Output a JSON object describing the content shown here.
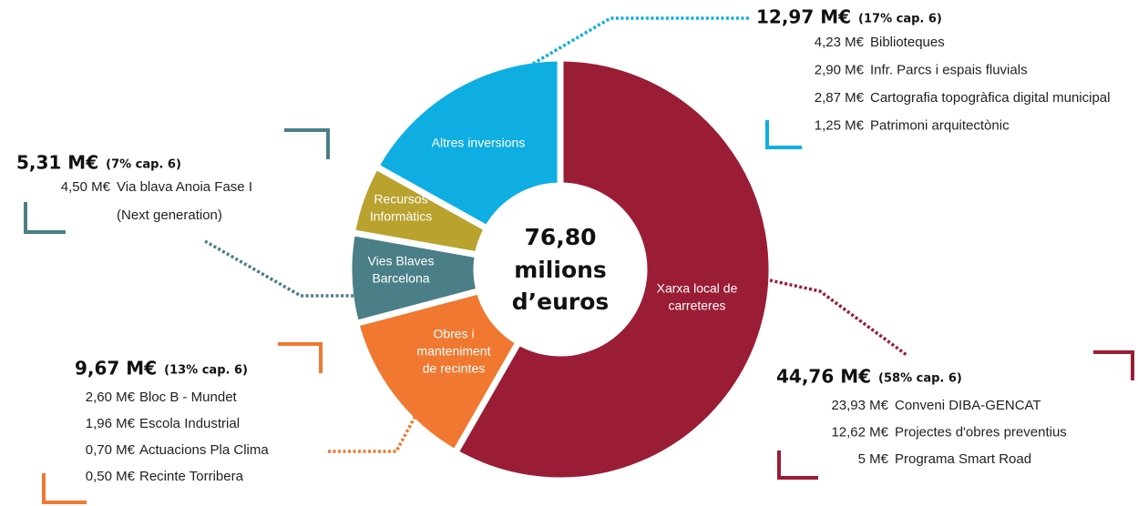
{
  "chart_data": {
    "type": "donut",
    "center_label": [
      "76,80",
      "milions",
      "d’euros"
    ],
    "categories": [
      [
        "Xarxa local de",
        "carreteres"
      ],
      [
        "Obres i",
        "manteniment",
        "de recintes"
      ],
      [
        "Vies Blaves",
        "Barcelona"
      ],
      [
        "Recursos",
        "Informàtics"
      ],
      [
        "Altres inversions"
      ]
    ],
    "values": [
      44.76,
      9.67,
      5.31,
      4.09,
      12.97
    ],
    "value_labels": [
      "44,76 M€",
      "9,67 M€",
      "5,31 M€",
      null,
      "12,97 M€"
    ],
    "pct_labels": [
      "(58% cap. 6)",
      "(13% cap. 6)",
      "(7% cap. 6)",
      null,
      "(17% cap. 6)"
    ],
    "colors": [
      "#9b1d35",
      "#f07830",
      "#4a7f87",
      "#b9a22e",
      "#0eaee3"
    ],
    "details": [
      [
        {
          "amount": "23,93 M€",
          "name": "Conveni DIBA-GENCAT"
        },
        {
          "amount": "12,62 M€",
          "name": "Projectes d'obres preventius"
        },
        {
          "amount": "5 M€",
          "name": "Programa Smart Road"
        }
      ],
      [
        {
          "amount": "2,60 M€",
          "name": "Bloc B - Mundet"
        },
        {
          "amount": "1,96 M€",
          "name": "Escola Industrial"
        },
        {
          "amount": "0,70 M€",
          "name": "Actuacions Pla Clima"
        },
        {
          "amount": "0,50 M€",
          "name": "Recinte Torribera"
        }
      ],
      [
        {
          "amount": "4,50 M€",
          "name": "Via blava Anoia Fase I"
        },
        {
          "name": "(Next generation)"
        }
      ],
      null,
      [
        {
          "amount": "4,23 M€",
          "name": "Biblioteques"
        },
        {
          "amount": "2,90 M€",
          "name": "Infr. Parcs i espais fluvials"
        },
        {
          "amount": "2,87 M€",
          "name": "Cartografia topogràfica digital municipal"
        },
        {
          "amount": "1,25 M€",
          "name": "Patrimoni arquitectònic"
        }
      ]
    ]
  }
}
